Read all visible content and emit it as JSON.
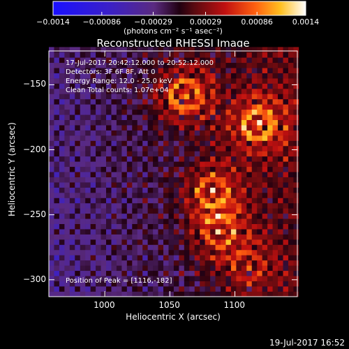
{
  "chart_data": {
    "type": "heatmap",
    "title": "Reconstructed RHESSI Image",
    "xlabel": "Heliocentric X (arcsec)",
    "ylabel": "Heliocentric Y (arcsec)",
    "xlim": [
      957,
      1148
    ],
    "ylim": [
      -313,
      -124
    ],
    "x_ticks": [
      1000,
      1050,
      1100
    ],
    "y_ticks": [
      -150,
      -200,
      -250,
      -300
    ],
    "colorbar": {
      "units": "(photons cm⁻² s⁻¹ asec⁻²)",
      "range": [
        -0.0014,
        0.0014
      ],
      "tick_labels": [
        "−0.0014",
        "−0.00086",
        "−0.00029",
        "0.00029",
        "0.00086",
        "0.0014"
      ],
      "tick_values": [
        -0.0014,
        -0.00086,
        -0.00029,
        0.00029,
        0.00086,
        0.0014
      ]
    },
    "annotations": {
      "time_range": "17-Jul-2017 20:42:12.000 to 20:52:12.000",
      "detectors": "Detectors: 3F 6F 8F, Att 0",
      "energy": "Energy Range: 12.0 - 25.0 keV",
      "method": "Clean     Total counts: 1.07e+04",
      "peak": "Position of Peak = [1116,-182]"
    },
    "sources": [
      {
        "x": 1062,
        "y": -158,
        "strength": 1.0
      },
      {
        "x": 1118,
        "y": -180,
        "strength": 1.0
      },
      {
        "x": 1083,
        "y": -232,
        "strength": 0.85
      },
      {
        "x": 1088,
        "y": -262,
        "strength": 0.75
      },
      {
        "x": 1110,
        "y": -290,
        "strength": 0.55
      }
    ]
  },
  "footer": {
    "date": "19-Jul-2017 16:52"
  },
  "colors": {
    "background": "#000000",
    "text": "#ffffff"
  }
}
